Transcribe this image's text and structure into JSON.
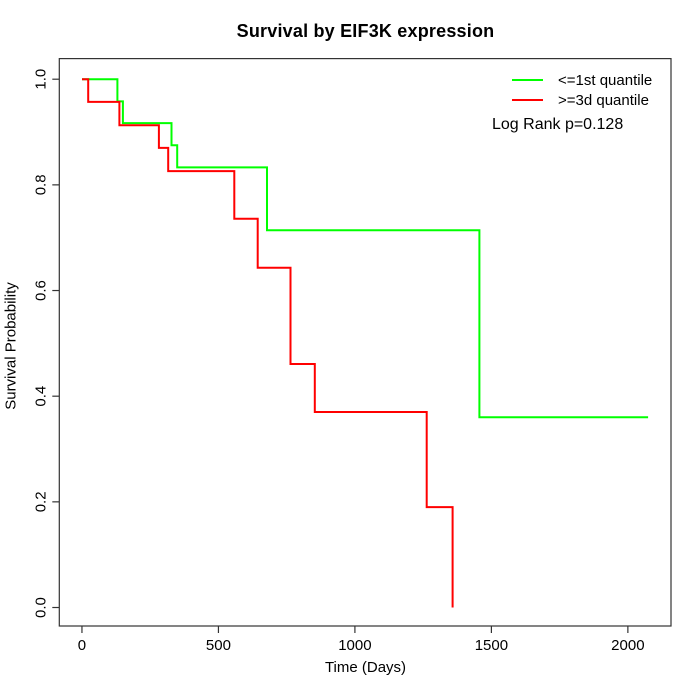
{
  "title": "Survival by EIF3K expression",
  "legend": {
    "entries": [
      {
        "label": "<=1st quantile",
        "color": "#00ff00"
      },
      {
        "label": ">=3d quantile",
        "color": "#ff0000"
      }
    ],
    "note": "Log Rank p=0.128"
  },
  "chart_data": {
    "type": "line",
    "subtype": "kaplan-meier-step",
    "title": "Survival by EIF3K expression",
    "xlabel": "Time (Days)",
    "ylabel": "Survival Probability",
    "xlim": [
      -83,
      2158
    ],
    "ylim": [
      -0.035,
      1.039
    ],
    "x_ticks": [
      0,
      500,
      1000,
      1500,
      2000
    ],
    "x_tick_labels": [
      "0",
      "500",
      "1000",
      "1500",
      "2000"
    ],
    "y_ticks": [
      0.0,
      0.2,
      0.4,
      0.6,
      0.8,
      1.0
    ],
    "y_tick_labels": [
      "0.0",
      "0.2",
      "0.4",
      "0.6",
      "0.8",
      "1.0"
    ],
    "grid": false,
    "legend_position": "top-right",
    "annotation": "Log Rank p=0.128",
    "log_rank_p": 0.128,
    "axis_color": "#333333",
    "series": [
      {
        "name": "<=1st quantile",
        "color": "#00ff00",
        "steps": [
          [
            0,
            1.0
          ],
          [
            130,
            0.958
          ],
          [
            150,
            0.917
          ],
          [
            328,
            0.875
          ],
          [
            349,
            0.833
          ],
          [
            678,
            0.714
          ],
          [
            1456,
            0.36
          ]
        ],
        "end_time": 2074
      },
      {
        "name": ">=3d quantile",
        "color": "#ff0000",
        "steps": [
          [
            0,
            1.0
          ],
          [
            23,
            0.957
          ],
          [
            137,
            0.913
          ],
          [
            282,
            0.87
          ],
          [
            316,
            0.826
          ],
          [
            558,
            0.736
          ],
          [
            644,
            0.643
          ],
          [
            764,
            0.461
          ],
          [
            853,
            0.37
          ],
          [
            1263,
            0.19
          ],
          [
            1358,
            0.0
          ]
        ],
        "end_time": 1358
      }
    ]
  }
}
